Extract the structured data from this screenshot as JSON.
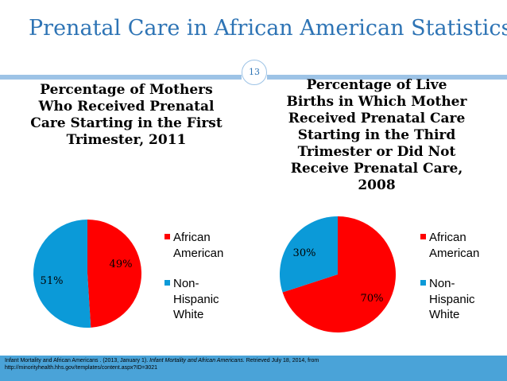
{
  "slide": {
    "title": "Prenatal Care in African American Statistics",
    "page_number": "13"
  },
  "chart_data": [
    {
      "type": "pie",
      "title": "Percentage of Mothers Who Received Prenatal Care Starting in the First Trimester, 2011",
      "categories": [
        "African American",
        "Non-Hispanic White"
      ],
      "values": [
        49,
        51
      ],
      "labels": [
        "49%",
        "51%"
      ],
      "colors": [
        "#ff0000",
        "#0b9ad8"
      ],
      "legend_position": "right"
    },
    {
      "type": "pie",
      "title": "Percentage of Live Births in Which Mother Received Prenatal Care Starting in the Third Trimester or Did Not Receive Prenatal Care, 2008",
      "categories": [
        "African American",
        "Non-Hispanic White"
      ],
      "values": [
        70,
        30
      ],
      "labels": [
        "70%",
        "30%"
      ],
      "colors": [
        "#ff0000",
        "#0b9ad8"
      ],
      "legend_position": "right"
    }
  ],
  "legend": {
    "african_american_line1": "African",
    "african_american_line2": "American",
    "non_hispanic_line1": "Non-",
    "non_hispanic_line2": "Hispanic",
    "non_hispanic_line3": "White"
  },
  "footer": {
    "part1": "Infant Mortality and African Americans . (2013, January 1). ",
    "italic": "Infant Mortality and African Americans.",
    "part2": " Retrieved July 18, 2014, from",
    "line2": "http://minorityhealth.hhs.gov/templates/content.aspx?ID=3021"
  }
}
